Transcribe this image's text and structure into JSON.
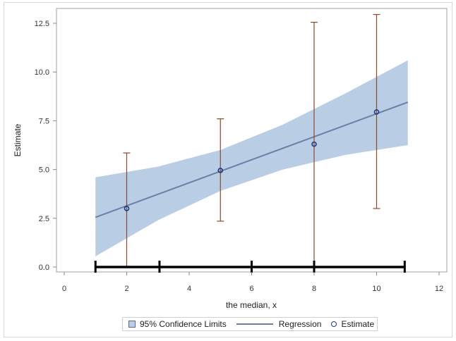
{
  "chart_data": {
    "type": "scatter",
    "title": "",
    "xlabel": "the median, x",
    "ylabel": "Estimate",
    "xlim": [
      0,
      12
    ],
    "ylim": [
      0,
      12.5
    ],
    "x_ticks": [
      "0",
      "2",
      "4",
      "6",
      "8",
      "10",
      "12"
    ],
    "y_ticks": [
      "0.0",
      "2.5",
      "5.0",
      "7.5",
      "10.0",
      "12.5"
    ],
    "grid": false,
    "legend_position": "bottom",
    "legend": [
      "95% Confidence Limits",
      "Regression",
      "Estimate"
    ],
    "series": [
      {
        "name": "Estimate",
        "type": "scatter",
        "x": [
          2,
          5,
          8,
          10
        ],
        "y": [
          3.0,
          4.95,
          6.3,
          7.95
        ],
        "error_lower": [
          0.0,
          2.35,
          0.0,
          3.0
        ],
        "error_upper": [
          5.85,
          7.6,
          12.55,
          12.95
        ],
        "color": "#1d3a8a",
        "error_color": "#8b4a2b"
      },
      {
        "name": "Regression",
        "type": "line",
        "x": [
          1,
          11
        ],
        "y": [
          2.55,
          8.45
        ],
        "color": "#6a7fa5"
      },
      {
        "name": "95% Confidence Limits",
        "type": "area",
        "x": [
          1,
          3,
          5,
          7,
          9,
          11
        ],
        "lower": [
          0.55,
          2.4,
          3.9,
          5.0,
          5.75,
          6.25
        ],
        "upper": [
          4.6,
          5.15,
          6.0,
          7.3,
          8.9,
          10.6
        ],
        "color": "#b9cde5"
      },
      {
        "name": "Interval bar",
        "type": "line",
        "x": [
          1,
          10.9
        ],
        "y": [
          0,
          0
        ],
        "tick_marks_x": [
          1,
          3.05,
          6,
          8,
          10.9
        ],
        "color": "#000000"
      }
    ]
  }
}
